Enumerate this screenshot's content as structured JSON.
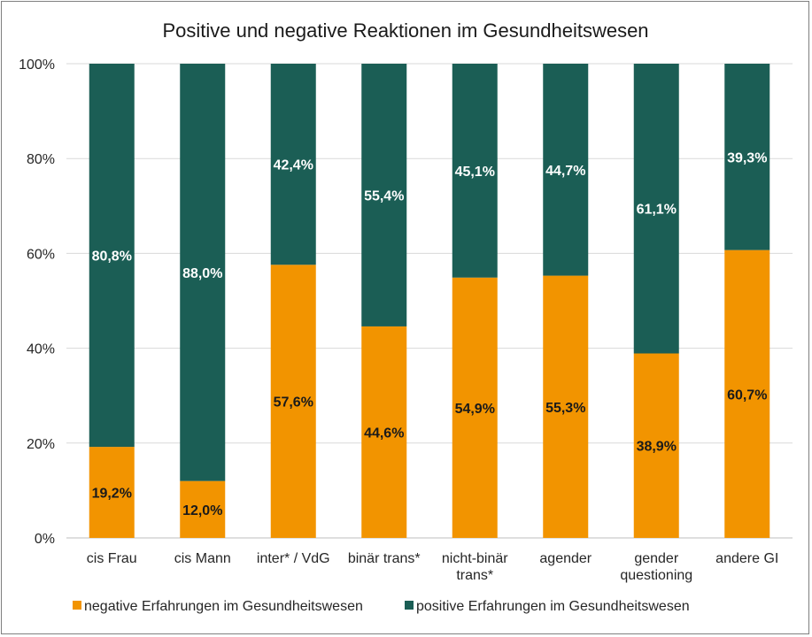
{
  "chart_data": {
    "type": "bar",
    "stacked": true,
    "title": "Positive und negative Reaktionen im Gesundheitswesen",
    "categories": [
      [
        "cis Frau"
      ],
      [
        "cis Mann"
      ],
      [
        "inter* / VdG"
      ],
      [
        "binär trans*"
      ],
      [
        "nicht-binär",
        "trans*"
      ],
      [
        "agender"
      ],
      [
        "gender",
        "questioning"
      ],
      [
        "andere GI"
      ]
    ],
    "series": [
      {
        "name": "negative Erfahrungen im Gesundheitswesen",
        "color": "#f29400",
        "values": [
          19.2,
          12.0,
          57.6,
          44.6,
          54.9,
          55.3,
          38.9,
          60.7
        ],
        "labels": [
          "19,2%",
          "12,0%",
          "57,6%",
          "44,6%",
          "54,9%",
          "55,3%",
          "38,9%",
          "60,7%"
        ]
      },
      {
        "name": "positive Erfahrungen im Gesundheitswesen",
        "color": "#1b5e55",
        "values": [
          80.8,
          88.0,
          42.4,
          55.4,
          45.1,
          44.7,
          61.1,
          39.3
        ],
        "labels": [
          "80,8%",
          "88,0%",
          "42,4%",
          "55,4%",
          "45,1%",
          "44,7%",
          "61,1%",
          "39,3%"
        ]
      }
    ],
    "ylim": [
      0,
      100
    ],
    "yticks": [
      0,
      20,
      40,
      60,
      80,
      100
    ],
    "ytick_labels": [
      "0%",
      "20%",
      "40%",
      "60%",
      "80%",
      "100%"
    ],
    "xlabel": "",
    "ylabel": "",
    "grid": true,
    "legend_position": "bottom",
    "gridline_color": "#d9d9d9"
  }
}
